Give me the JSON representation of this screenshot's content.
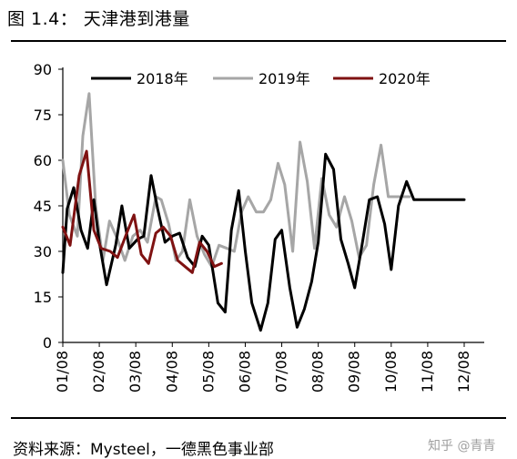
{
  "figure_title": "图 1.4：  天津港到港量",
  "source": "资料来源：Mysteel，一德黑色事业部",
  "watermark": "知乎 @青青",
  "chart_data": {
    "type": "line",
    "title": "",
    "xlabel": "",
    "ylabel": "",
    "ylim": [
      0,
      90
    ],
    "yticks": [
      0,
      15,
      30,
      45,
      60,
      75,
      90
    ],
    "xticks": [
      "01/08",
      "02/08",
      "03/08",
      "04/08",
      "05/08",
      "06/08",
      "07/08",
      "08/08",
      "09/08",
      "10/08",
      "11/08",
      "12/08"
    ],
    "grid": false,
    "legend": "top",
    "colors": {
      "2018": "#000000",
      "2019": "#a6a6a6",
      "2020": "#7f1212"
    },
    "series": [
      {
        "name": "2018年",
        "x": [
          0,
          0.12,
          0.3,
          0.5,
          0.68,
          0.85,
          1.0,
          1.2,
          1.45,
          1.62,
          1.82,
          2.05,
          2.22,
          2.42,
          2.6,
          2.8,
          3.0,
          3.2,
          3.42,
          3.62,
          3.82,
          4.0,
          4.25,
          4.45,
          4.62,
          4.82,
          5.0,
          5.18,
          5.42,
          5.62,
          5.82,
          6.0,
          6.22,
          6.42,
          6.62,
          6.82,
          7.0,
          7.2,
          7.42,
          7.62,
          7.82,
          8.0,
          8.2,
          8.4,
          8.62,
          8.82,
          9.0,
          9.2,
          9.42,
          9.62,
          9.82,
          10.0,
          10.2,
          10.42,
          10.6,
          10.82,
          11.0
        ],
        "y": [
          23,
          44,
          51,
          37,
          31,
          47,
          33,
          19,
          32,
          45,
          31,
          34,
          35,
          55,
          44,
          33,
          35,
          36,
          28,
          25,
          35,
          32,
          13,
          10,
          37,
          50,
          30,
          13,
          4,
          13,
          34,
          37,
          18,
          5,
          11,
          20,
          33,
          62,
          57,
          34,
          26,
          18,
          32,
          47,
          48,
          39,
          24,
          45,
          53,
          47,
          47,
          47,
          47,
          47,
          47,
          47,
          47
        ]
      },
      {
        "name": "2019年",
        "x": [
          0,
          0.18,
          0.4,
          0.55,
          0.72,
          0.9,
          1.1,
          1.28,
          1.5,
          1.7,
          1.92,
          2.12,
          2.32,
          2.55,
          2.7,
          2.9,
          3.1,
          3.28,
          3.48,
          3.68,
          3.88,
          4.08,
          4.28,
          4.5,
          4.7,
          4.9,
          5.08,
          5.3,
          5.5,
          5.7,
          5.9,
          6.08,
          6.3,
          6.5,
          6.7,
          6.9,
          7.1,
          7.3,
          7.5,
          7.72,
          7.92,
          8.12,
          8.32,
          8.52,
          8.72,
          8.92,
          9.12,
          9.32,
          9.5
        ],
        "y": [
          60,
          42,
          35,
          68,
          82,
          45,
          27,
          40,
          34,
          27,
          35,
          37,
          33,
          48,
          47,
          39,
          27,
          30,
          47,
          35,
          29,
          25,
          32,
          31,
          30,
          43,
          48,
          43,
          43,
          47,
          59,
          52,
          30,
          66,
          53,
          31,
          54,
          42,
          38,
          48,
          40,
          28,
          32,
          52,
          65,
          48,
          48,
          48,
          48
        ]
      },
      {
        "name": "2020年",
        "x": [
          0,
          0.2,
          0.45,
          0.65,
          0.85,
          1.05,
          1.3,
          1.5,
          1.75,
          1.95,
          2.15,
          2.35,
          2.55,
          2.75,
          2.95,
          3.15,
          3.35,
          3.55,
          3.75,
          3.95,
          4.15,
          4.35
        ],
        "y": [
          38,
          32,
          55,
          63,
          37,
          31,
          30,
          28,
          36,
          42,
          29,
          26,
          36,
          38,
          35,
          27,
          25,
          23,
          33,
          30,
          25,
          26
        ]
      }
    ]
  }
}
